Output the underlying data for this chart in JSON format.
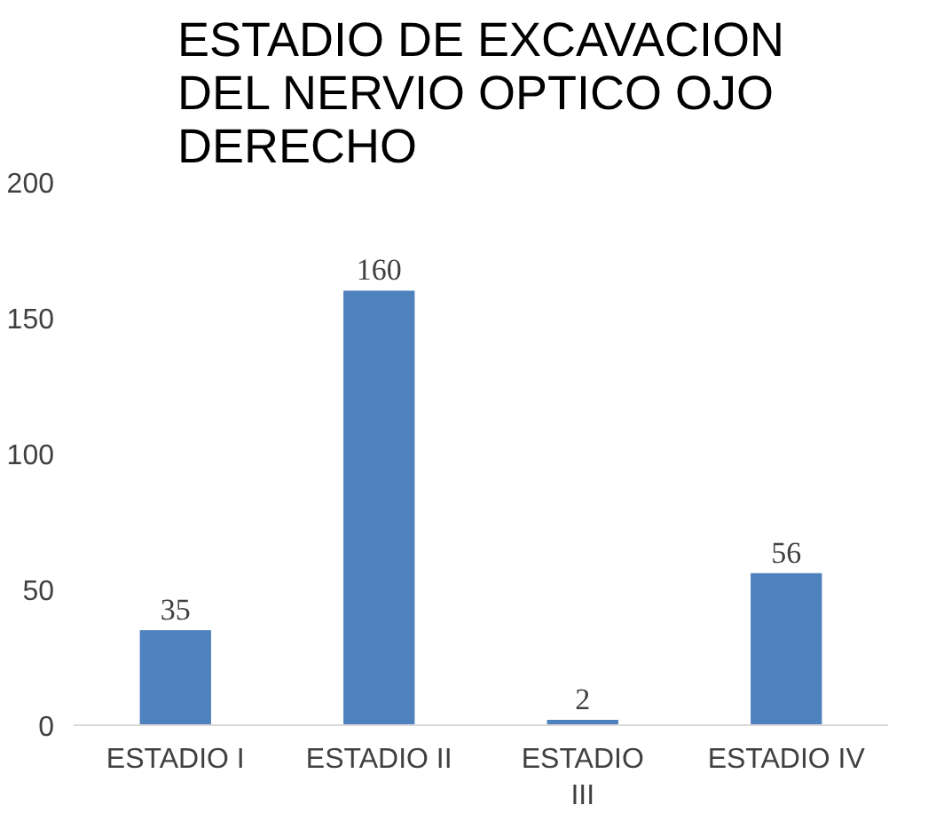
{
  "chart_data": {
    "type": "bar",
    "title": "ESTADIO DE EXCAVACION DEL NERVIO OPTICO OJO DERECHO",
    "categories": [
      "ESTADIO I",
      "ESTADIO II",
      "ESTADIO III",
      "ESTADIO IV"
    ],
    "values": [
      35,
      160,
      2,
      56
    ],
    "color": "#4f81bd",
    "ylim": [
      0,
      200
    ],
    "yticks": [
      0,
      50,
      100,
      150,
      200
    ],
    "grid": false,
    "data_labels": true
  }
}
